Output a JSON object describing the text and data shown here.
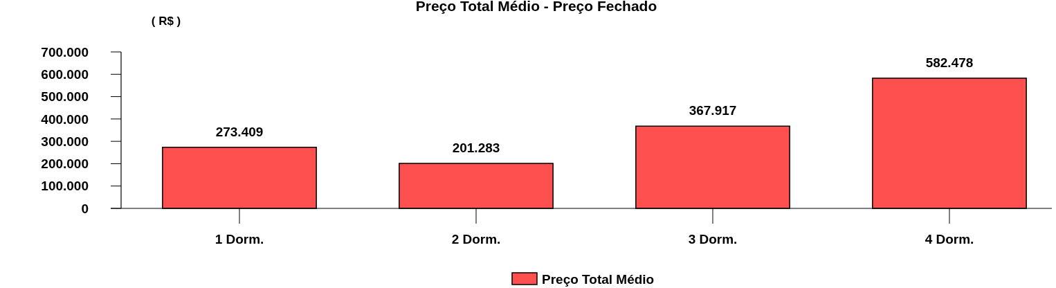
{
  "chart_data": {
    "type": "bar",
    "title": "Preço Total Médio - Preço Fechado",
    "ylabel": "( R$ )",
    "categories": [
      "1 Dorm.",
      "2 Dorm.",
      "3 Dorm.",
      "4 Dorm."
    ],
    "series": [
      {
        "name": "Preço Total Médio",
        "color": "#ff5050",
        "values": [
          273409,
          201283,
          367917,
          582478
        ],
        "value_labels": [
          "273.409",
          "201.283",
          "367.917",
          "582.478"
        ]
      }
    ],
    "ylim": [
      0,
      700000
    ],
    "yticks": [
      {
        "value": 0,
        "label": "0"
      },
      {
        "value": 100000,
        "label": "100.000"
      },
      {
        "value": 200000,
        "label": "200.000"
      },
      {
        "value": 300000,
        "label": "300.000"
      },
      {
        "value": 400000,
        "label": "400.000"
      },
      {
        "value": 500000,
        "label": "500.000"
      },
      {
        "value": 600000,
        "label": "600.000"
      },
      {
        "value": 700000,
        "label": "700.000"
      }
    ],
    "grid": false,
    "legend": "bottom"
  }
}
